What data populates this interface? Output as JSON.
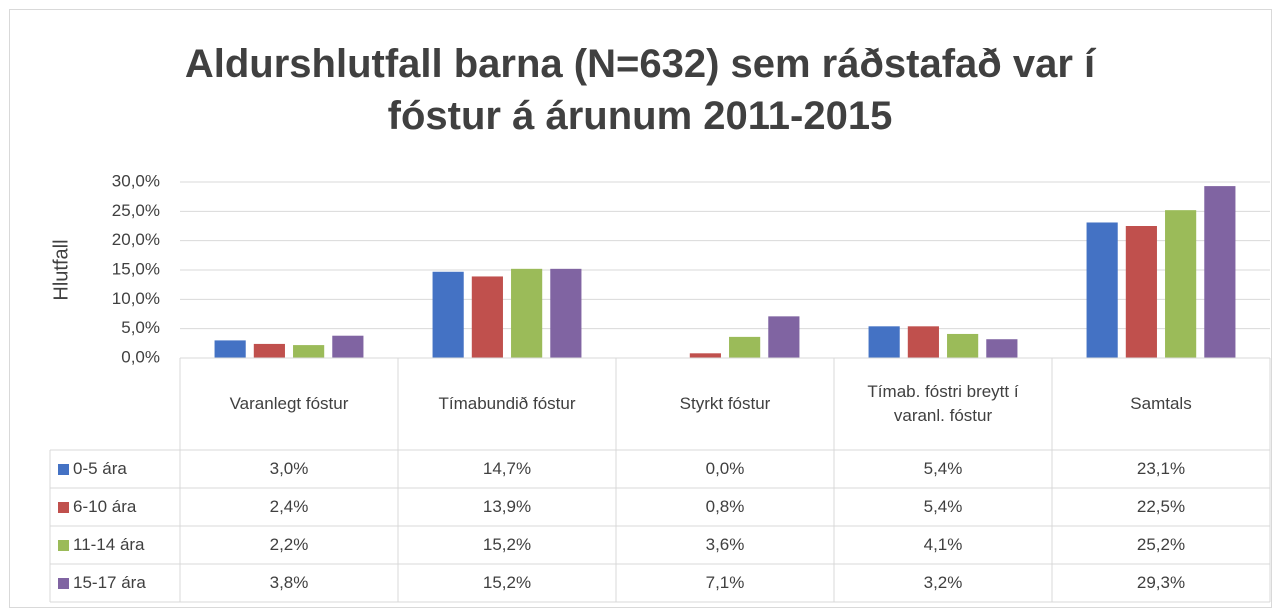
{
  "chart_data": {
    "type": "bar",
    "title": "Aldurshlutfall barna (N=632) sem ráðstafað var í fóstur á árunum 2011-2015",
    "y_label": "Hlutfall",
    "categories": [
      "Varanlegt fóstur",
      "Tímabundið fóstur",
      "Styrkt fóstur",
      "Tímab. fóstri breytt í varanl. fóstur",
      "Samtals"
    ],
    "series": [
      {
        "name": "0-5 ára",
        "color": "#4472c4",
        "values": [
          3.0,
          14.7,
          0.0,
          5.4,
          23.1
        ],
        "value_labels": [
          "3,0%",
          "14,7%",
          "0,0%",
          "5,4%",
          "23,1%"
        ]
      },
      {
        "name": "6-10 ára",
        "color": "#c0504d",
        "values": [
          2.4,
          13.9,
          0.8,
          5.4,
          22.5
        ],
        "value_labels": [
          "2,4%",
          "13,9%",
          "0,8%",
          "5,4%",
          "22,5%"
        ]
      },
      {
        "name": "11-14 ára",
        "color": "#9bbb59",
        "values": [
          2.2,
          15.2,
          3.6,
          4.1,
          25.2
        ],
        "value_labels": [
          "2,2%",
          "15,2%",
          "3,6%",
          "4,1%",
          "25,2%"
        ]
      },
      {
        "name": "15-17 ára",
        "color": "#8064a2",
        "values": [
          3.8,
          15.2,
          7.1,
          3.2,
          29.3
        ],
        "value_labels": [
          "3,8%",
          "15,2%",
          "7,1%",
          "3,2%",
          "29,3%"
        ]
      }
    ],
    "ylim": [
      0,
      30
    ],
    "yticks": [
      {
        "value": 0,
        "label": "0,0%"
      },
      {
        "value": 5,
        "label": "5,0%"
      },
      {
        "value": 10,
        "label": "10,0%"
      },
      {
        "value": 15,
        "label": "15,0%"
      },
      {
        "value": 20,
        "label": "20,0%"
      },
      {
        "value": 25,
        "label": "25,0%"
      },
      {
        "value": 30,
        "label": "30,0%"
      }
    ],
    "grid": true
  }
}
